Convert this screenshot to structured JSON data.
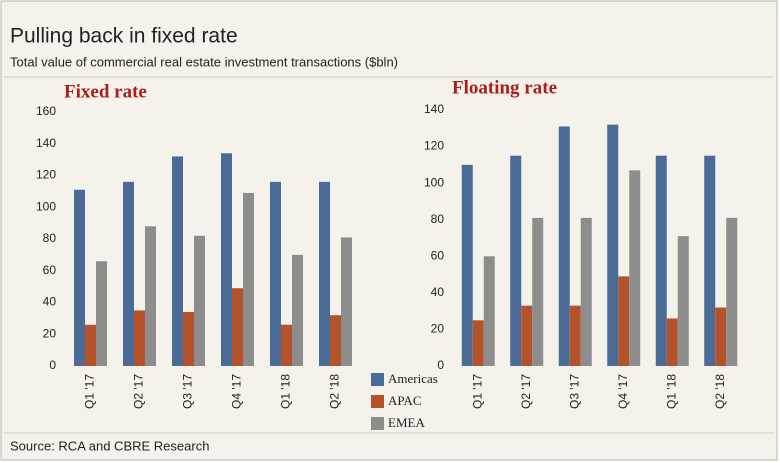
{
  "title": "Pulling back in fixed rate",
  "subtitle": "Total value of commercial real estate investment transactions ($bln)",
  "source": "Source: RCA and CBRE Research",
  "chart_data": [
    {
      "type": "bar",
      "title": "Fixed rate",
      "categories": [
        "Q1 '17",
        "Q2 '17",
        "Q3 '17",
        "Q4 '17",
        "Q1 '18",
        "Q2 '18"
      ],
      "series": [
        {
          "name": "Americas",
          "color": "#4a6b96",
          "values": [
            111,
            116,
            132,
            134,
            116,
            116
          ]
        },
        {
          "name": "APAC",
          "color": "#b4532b",
          "values": [
            26,
            35,
            34,
            49,
            26,
            32
          ]
        },
        {
          "name": "EMEA",
          "color": "#8d8d8d",
          "values": [
            66,
            88,
            82,
            109,
            70,
            81
          ]
        }
      ],
      "ylim": [
        0,
        160
      ],
      "yticks": [
        0,
        20,
        40,
        60,
        80,
        100,
        120,
        140,
        160
      ],
      "grid": false
    },
    {
      "type": "bar",
      "title": "Floating rate",
      "categories": [
        "Q1 '17",
        "Q2 '17",
        "Q3 '17",
        "Q4 '17",
        "Q1 '18",
        "Q2 '18"
      ],
      "series": [
        {
          "name": "Americas",
          "color": "#4a6b96",
          "values": [
            110,
            115,
            131,
            132,
            115,
            115
          ]
        },
        {
          "name": "APAC",
          "color": "#b4532b",
          "values": [
            25,
            33,
            33,
            49,
            26,
            32
          ]
        },
        {
          "name": "EMEA",
          "color": "#8d8d8d",
          "values": [
            60,
            81,
            81,
            107,
            71,
            81
          ]
        }
      ],
      "ylim": [
        0,
        140
      ],
      "yticks": [
        0,
        20,
        40,
        60,
        80,
        100,
        120,
        140
      ],
      "grid": false
    }
  ]
}
